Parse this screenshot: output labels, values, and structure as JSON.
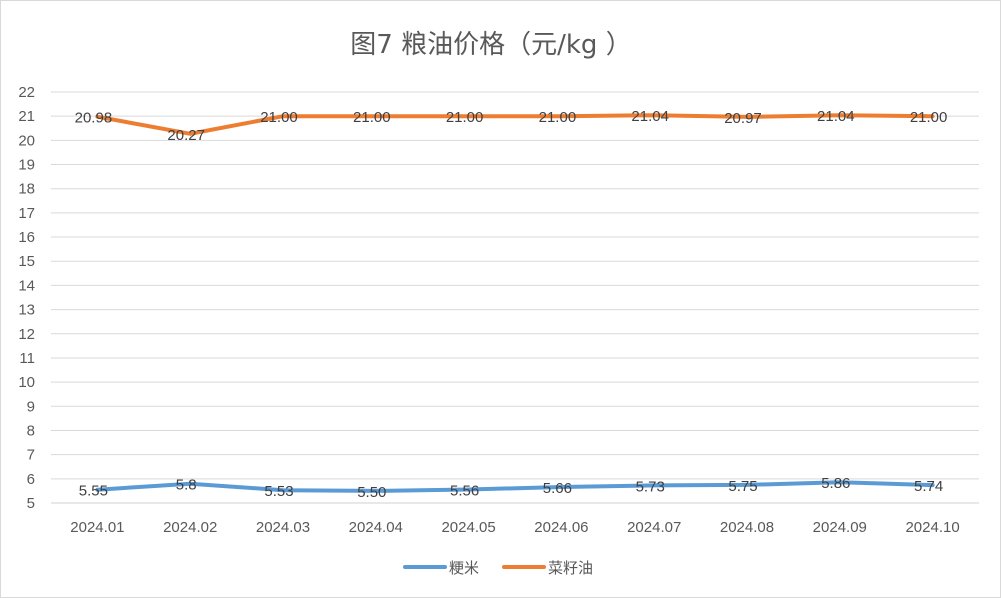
{
  "chart_data": {
    "type": "line",
    "title": "图7  粮油价格（元/kg ）",
    "categories": [
      "2024.01",
      "2024.02",
      "2024.03",
      "2024.04",
      "2024.05",
      "2024.06",
      "2024.07",
      "2024.08",
      "2024.09",
      "2024.10"
    ],
    "ylim": [
      5,
      22
    ],
    "yticks": [
      "5",
      "6",
      "7",
      "8",
      "9",
      "10",
      "11",
      "12",
      "13",
      "14",
      "15",
      "16",
      "17",
      "18",
      "19",
      "20",
      "21",
      "22"
    ],
    "grid": true,
    "legend": "bottom",
    "series": [
      {
        "name": "粳米",
        "color": "#5b9bd5",
        "values": [
          5.55,
          5.8,
          5.53,
          5.5,
          5.56,
          5.66,
          5.73,
          5.75,
          5.86,
          5.74
        ],
        "labels": [
          "5.55",
          "5.8",
          "5.53",
          "5.50",
          "5.56",
          "5.66",
          "5.73",
          "5.75",
          "5.86",
          "5.74"
        ]
      },
      {
        "name": "菜籽油",
        "color": "#ed7d31",
        "values": [
          20.98,
          20.27,
          21.0,
          21.0,
          21.0,
          21.0,
          21.04,
          20.97,
          21.04,
          21.0
        ],
        "labels": [
          "20.98",
          "20.27",
          "21.00",
          "21.00",
          "21.00",
          "21.00",
          "21.04",
          "20.97",
          "21.04",
          "21.00"
        ]
      }
    ]
  }
}
